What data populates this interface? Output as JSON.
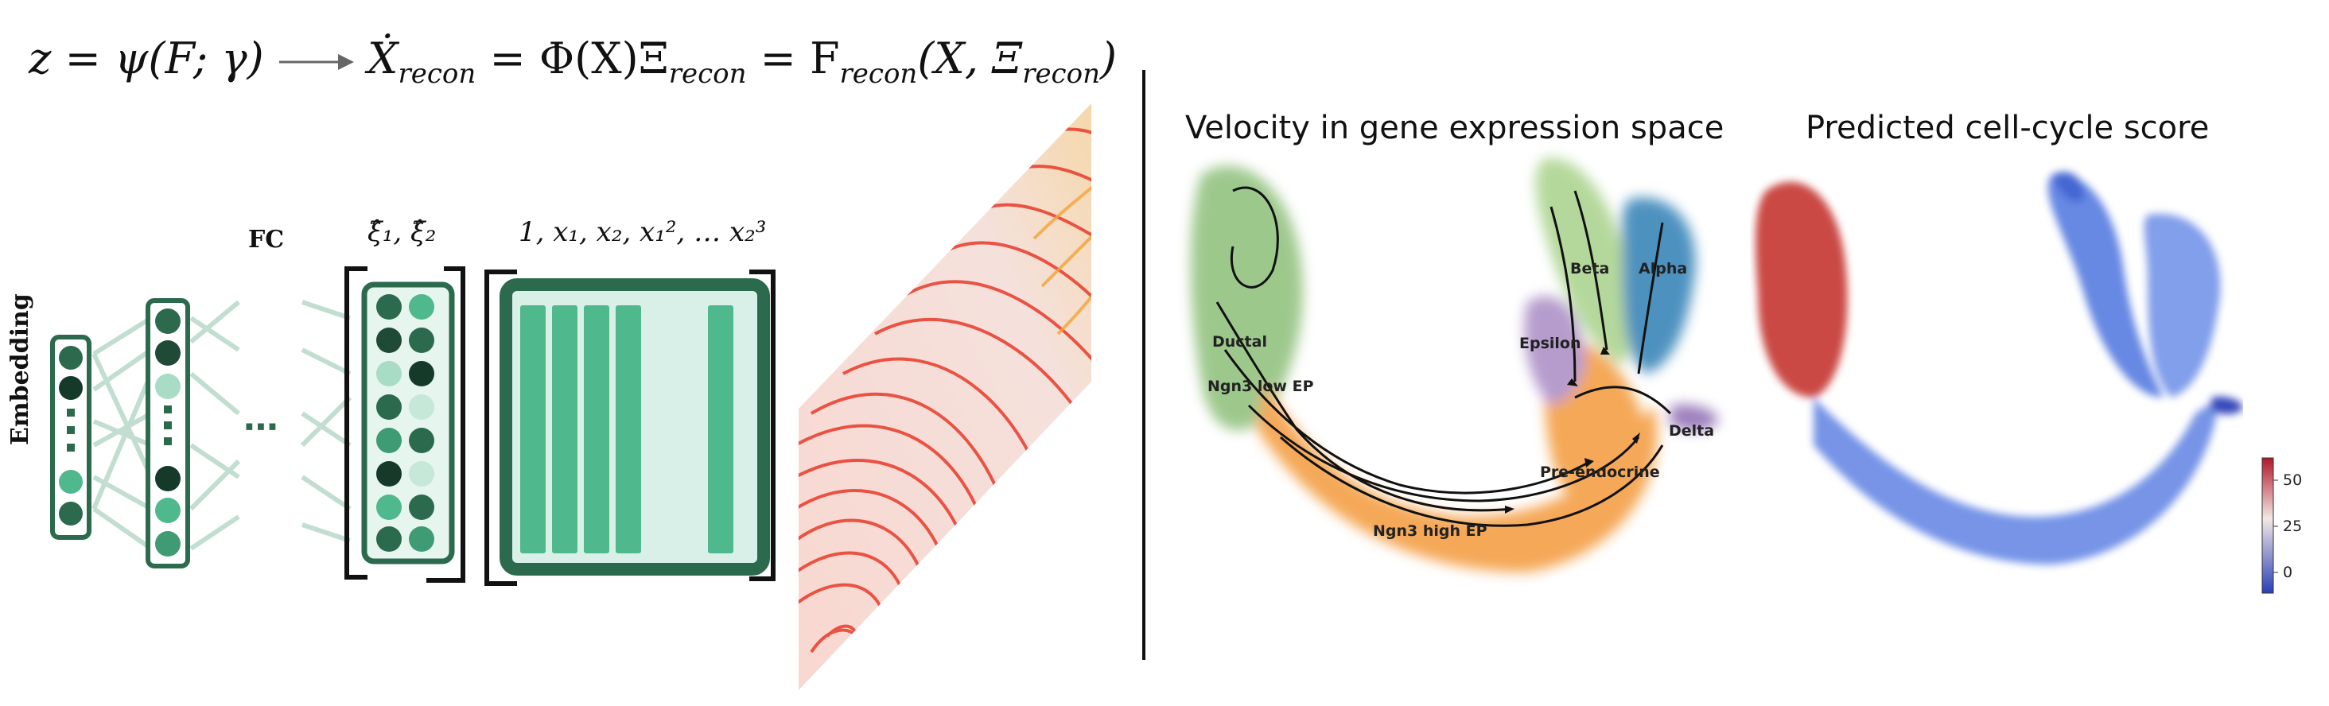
{
  "equation": {
    "lhs": "z = ψ(F; γ)",
    "rhs": "Ẋ",
    "rhs_sub": "recon",
    "middle": " = Φ(X)Ξ",
    "middle_sub": "recon",
    "end": " = F",
    "end_sub": "recon",
    "end_args": "(X, Ξ",
    "end_args_sub": "recon",
    "end_close": ")"
  },
  "network": {
    "embedding_label": "Embedding",
    "fc_label": "FC",
    "dots_label": "⋯",
    "coefficients_label": "ξ̂₁, ξ̂₂",
    "library_label": "1, x₁, x₂, x₁², … x₂³"
  },
  "velocity_plot": {
    "title": "Velocity in gene expression space",
    "clusters": [
      "Ductal",
      "Ngn3 low EP",
      "Beta",
      "Alpha",
      "Epsilon",
      "Delta",
      "Pre-endocrine",
      "Ngn3 high EP"
    ],
    "colors": {
      "ductal": "#8dbf79",
      "ngn3_low": "#8dbf79",
      "beta": "#a8d28a",
      "alpha": "#2f7fb5",
      "epsilon": "#a98bc4",
      "delta": "#8c6bb1",
      "pre_endocrine": "#f39a3b",
      "ngn3_high": "#f39a3b"
    }
  },
  "cellcycle_plot": {
    "title": "Predicted cell-cycle score",
    "colorbar_ticks": [
      "50",
      "25",
      "0"
    ],
    "colors": {
      "high": "#c8413a",
      "mid": "#e8e2e0",
      "low": "#3a5fd0"
    }
  },
  "colors": {
    "network_dark": "#2b6a4c",
    "network_mid": "#4fb88c",
    "network_light": "#d9f0e8",
    "field_red": "#e83a2a",
    "field_orange": "#f2a43a"
  }
}
